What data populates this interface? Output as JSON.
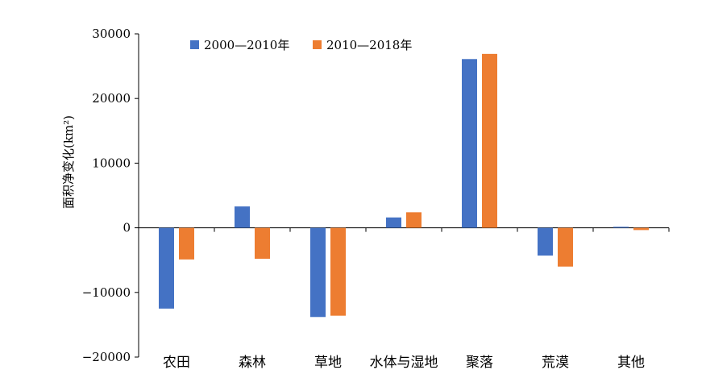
{
  "chart_data": {
    "type": "bar",
    "ylabel": "面积净变化(km²)",
    "ylim": [
      -20000,
      30000
    ],
    "yticks": [
      30000,
      20000,
      10000,
      0,
      -10000,
      -20000
    ],
    "ytick_labels": [
      "30000",
      "20000",
      "10000",
      "0",
      "−10000",
      "−20000"
    ],
    "categories": [
      "农田",
      "森林",
      "草地",
      "水体与湿地",
      "聚落",
      "荒漠",
      "其他"
    ],
    "series": [
      {
        "name": "2000—2010年",
        "color": "#4472C4",
        "values": [
          -12500,
          3300,
          -13800,
          1600,
          26100,
          -4300,
          150
        ]
      },
      {
        "name": "2010—2018年",
        "color": "#ED7D31",
        "values": [
          -4900,
          -4800,
          -13600,
          2400,
          26900,
          -6000,
          -350
        ]
      }
    ],
    "legend_position": "top-left",
    "grid": false
  }
}
